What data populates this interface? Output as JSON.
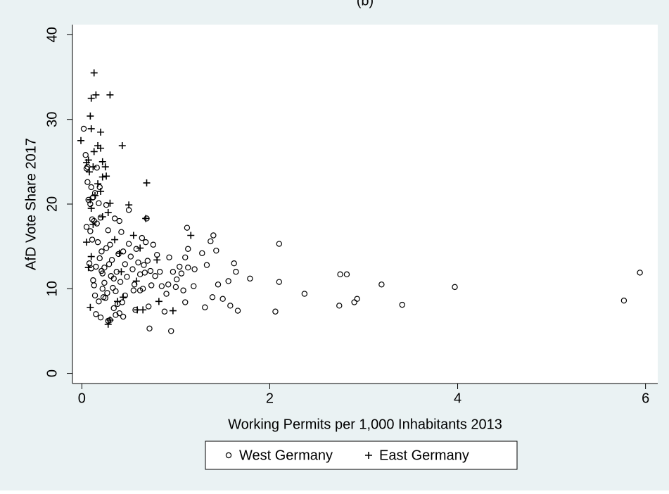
{
  "chart_data": {
    "type": "scatter",
    "title": "(b)",
    "x_label": "Working Permits per 1,000 Inhabitants 2013",
    "y_label": "AfD Vote Share 2017",
    "xlim": [
      -0.1,
      6.13
    ],
    "ylim": [
      -1.2,
      41.2
    ],
    "xticks": [
      0,
      2,
      4,
      6
    ],
    "yticks": [
      0,
      10,
      20,
      30,
      40
    ],
    "grid": false,
    "legend": "bottom",
    "series": [
      {
        "name": "West Germany",
        "color": "#000000",
        "marker": "circle",
        "x": [
          5.94,
          5.77,
          3.97,
          3.41,
          3.19,
          2.93,
          2.9,
          2.82,
          2.75,
          2.74,
          2.37,
          2.1,
          2.1,
          2.06,
          1.79,
          1.66,
          1.64,
          1.62,
          1.58,
          1.56,
          1.5,
          1.45,
          1.43,
          1.4,
          1.39,
          1.37,
          1.33,
          1.31,
          1.28,
          1.2,
          1.19,
          1.13,
          1.13,
          1.12,
          1.1,
          1.1,
          1.08,
          1.06,
          1.04,
          1.01,
          1.0,
          0.97,
          0.95,
          0.93,
          0.92,
          0.9,
          0.88,
          0.85,
          0.83,
          0.8,
          0.78,
          0.76,
          0.74,
          0.72,
          0.71,
          0.69,
          0.68,
          0.66,
          0.64,
          0.62,
          0.02,
          0.04,
          0.05,
          0.06,
          0.07,
          0.05,
          0.09,
          0.1,
          0.12,
          0.14,
          0.16,
          0.18,
          0.2,
          0.13,
          0.11,
          0.08,
          0.1,
          0.12,
          0.14,
          0.15,
          0.18,
          0.2,
          0.22,
          0.24,
          0.26,
          0.28,
          0.3,
          0.32,
          0.34,
          0.36,
          0.38,
          0.4,
          0.28,
          0.3,
          0.25,
          0.22,
          0.19,
          0.17,
          0.26,
          0.35,
          0.4,
          0.42,
          0.44,
          0.46,
          0.48,
          0.5,
          0.5,
          0.52,
          0.54,
          0.56,
          0.58,
          0.6,
          0.62,
          0.44,
          0.46,
          0.24,
          0.27,
          0.33,
          0.37,
          0.39,
          0.21,
          0.15,
          0.13,
          0.31,
          0.29,
          0.23,
          0.41,
          0.43,
          0.55,
          0.57,
          0.65,
          0.67,
          0.7,
          0.73,
          0.06,
          0.09,
          0.11,
          0.16,
          0.19,
          0.21,
          0.34,
          0.36
        ],
        "values": [
          11.9,
          8.6,
          10.2,
          8.1,
          10.5,
          8.8,
          8.4,
          11.7,
          11.7,
          8.0,
          9.4,
          15.3,
          10.8,
          7.3,
          11.2,
          7.4,
          12.0,
          13.0,
          8.0,
          10.9,
          8.8,
          10.5,
          14.5,
          16.3,
          9.0,
          15.6,
          12.8,
          7.8,
          14.2,
          12.3,
          10.3,
          14.7,
          12.5,
          17.2,
          13.7,
          8.4,
          9.8,
          11.8,
          12.6,
          11.1,
          10.2,
          12.0,
          5.0,
          13.7,
          10.5,
          9.4,
          7.3,
          10.3,
          12.0,
          14.0,
          11.5,
          15.2,
          10.4,
          5.3,
          7.9,
          18.3,
          15.5,
          12.8,
          16.0,
          9.8,
          28.9,
          25.8,
          24.2,
          22.6,
          20.5,
          17.3,
          16.8,
          22.0,
          20.8,
          21.3,
          24.3,
          20.1,
          18.4,
          18.0,
          15.8,
          13.0,
          12.4,
          11.0,
          9.2,
          7.0,
          8.5,
          6.6,
          10.0,
          12.5,
          14.8,
          16.9,
          15.2,
          13.4,
          11.2,
          9.7,
          8.2,
          7.1,
          6.2,
          6.3,
          8.9,
          11.8,
          13.6,
          15.5,
          19.9,
          18.3,
          18.0,
          16.7,
          14.4,
          12.9,
          11.4,
          15.3,
          19.3,
          13.8,
          12.3,
          10.5,
          14.7,
          13.1,
          11.7,
          6.7,
          9.2,
          10.7,
          9.5,
          10.1,
          12.0,
          14.1,
          14.4,
          12.6,
          10.4,
          11.5,
          12.9,
          9.0,
          10.8,
          8.4,
          9.8,
          7.5,
          10.0,
          11.9,
          13.3,
          12.1,
          24.4,
          20.0,
          18.2,
          17.7,
          22.0,
          12.1,
          7.7,
          6.9
        ]
      },
      {
        "name": "East Germany",
        "color": "#000000",
        "marker": "plus",
        "x": [
          0.13,
          0.1,
          0.15,
          0.3,
          0.09,
          0.1,
          0.2,
          -0.01,
          0.43,
          0.17,
          0.2,
          0.13,
          0.07,
          0.05,
          0.22,
          0.12,
          0.25,
          0.08,
          0.26,
          0.22,
          0.69,
          0.17,
          0.2,
          0.14,
          0.09,
          0.3,
          0.5,
          0.1,
          0.28,
          0.22,
          0.68,
          0.12,
          0.55,
          1.16,
          0.05,
          0.35,
          0.62,
          0.4,
          0.1,
          0.07,
          0.8,
          0.42,
          0.59,
          0.65,
          0.97,
          0.82,
          0.09,
          0.28,
          0.3,
          0.58,
          0.38,
          0.44
        ],
        "values": [
          35.5,
          32.5,
          32.9,
          32.9,
          30.4,
          28.9,
          28.5,
          27.5,
          26.9,
          26.9,
          26.6,
          26.2,
          25.2,
          24.9,
          25.0,
          24.4,
          24.4,
          23.8,
          23.3,
          23.2,
          22.5,
          22.4,
          21.5,
          21.0,
          20.5,
          20.1,
          19.9,
          19.5,
          19.0,
          18.5,
          18.3,
          17.6,
          16.3,
          16.3,
          15.5,
          15.8,
          14.8,
          14.2,
          13.8,
          12.5,
          13.4,
          12.0,
          7.5,
          7.5,
          7.4,
          8.5,
          7.8,
          5.8,
          6.3,
          10.9,
          8.5,
          9.0
        ]
      }
    ]
  }
}
